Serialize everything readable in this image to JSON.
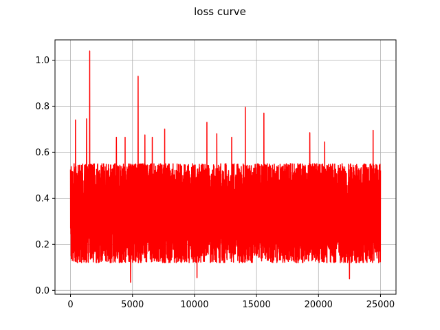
{
  "chart_data": {
    "type": "line",
    "title": "loss curve",
    "xlabel": "",
    "ylabel": "",
    "xlim": [
      -1250,
      26250
    ],
    "ylim": [
      -0.017,
      1.088
    ],
    "x_ticks": [
      0,
      5000,
      10000,
      15000,
      20000,
      25000
    ],
    "x_tick_labels": [
      "0",
      "5000",
      "10000",
      "15000",
      "20000",
      "25000"
    ],
    "y_ticks": [
      0.0,
      0.2,
      0.4,
      0.6,
      0.8,
      1.0
    ],
    "y_tick_labels": [
      "0.0",
      "0.2",
      "0.4",
      "0.6",
      "0.8",
      "1.0"
    ],
    "grid": true,
    "series": [
      {
        "color": "#ff0000",
        "x_range": [
          0,
          25000
        ],
        "typical_band": [
          0.12,
          0.55
        ],
        "peaks": [
          {
            "x": 400,
            "y": 0.74
          },
          {
            "x": 1300,
            "y": 0.745
          },
          {
            "x": 1550,
            "y": 1.04
          },
          {
            "x": 3700,
            "y": 0.665
          },
          {
            "x": 4400,
            "y": 0.665
          },
          {
            "x": 5450,
            "y": 0.93
          },
          {
            "x": 6000,
            "y": 0.675
          },
          {
            "x": 6600,
            "y": 0.665
          },
          {
            "x": 7600,
            "y": 0.7
          },
          {
            "x": 11000,
            "y": 0.73
          },
          {
            "x": 11800,
            "y": 0.68
          },
          {
            "x": 13000,
            "y": 0.665
          },
          {
            "x": 14100,
            "y": 0.795
          },
          {
            "x": 15600,
            "y": 0.77
          },
          {
            "x": 19300,
            "y": 0.685
          },
          {
            "x": 20500,
            "y": 0.645
          },
          {
            "x": 24400,
            "y": 0.695
          }
        ],
        "troughs": [
          {
            "x": 4850,
            "y": 0.035
          },
          {
            "x": 10200,
            "y": 0.055
          },
          {
            "x": 22500,
            "y": 0.05
          }
        ]
      }
    ]
  }
}
